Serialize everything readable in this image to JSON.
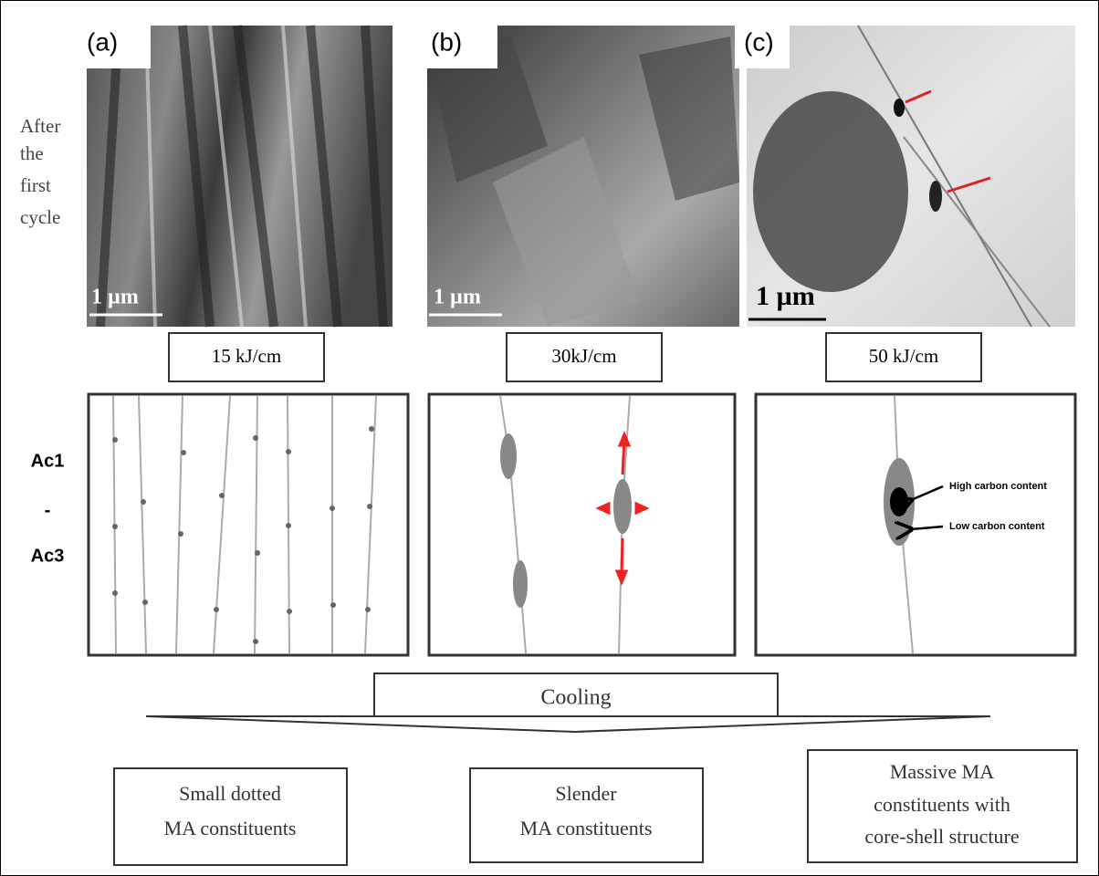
{
  "panels": [
    {
      "label": "(a)",
      "scale_bar": "1 µm",
      "heat_input": "15 kJ/cm",
      "outcome": [
        "Small dotted",
        "MA constituents"
      ]
    },
    {
      "label": "(b)",
      "scale_bar": "1 µm",
      "heat_input": "30kJ/cm",
      "outcome": [
        "Slender",
        "MA constituents"
      ]
    },
    {
      "label": "(c)",
      "scale_bar": "1 µm",
      "heat_input": "50 kJ/cm",
      "outcome": [
        "Massive MA",
        "constituents with",
        "core-shell structure"
      ]
    }
  ],
  "row_labels": {
    "micrograph": [
      "After",
      "the",
      "first",
      "cycle"
    ],
    "schematic": [
      "Ac1",
      "-",
      "Ac3"
    ]
  },
  "annotations": {
    "high": "High carbon content",
    "low": "Low carbon content"
  },
  "process": "Cooling"
}
